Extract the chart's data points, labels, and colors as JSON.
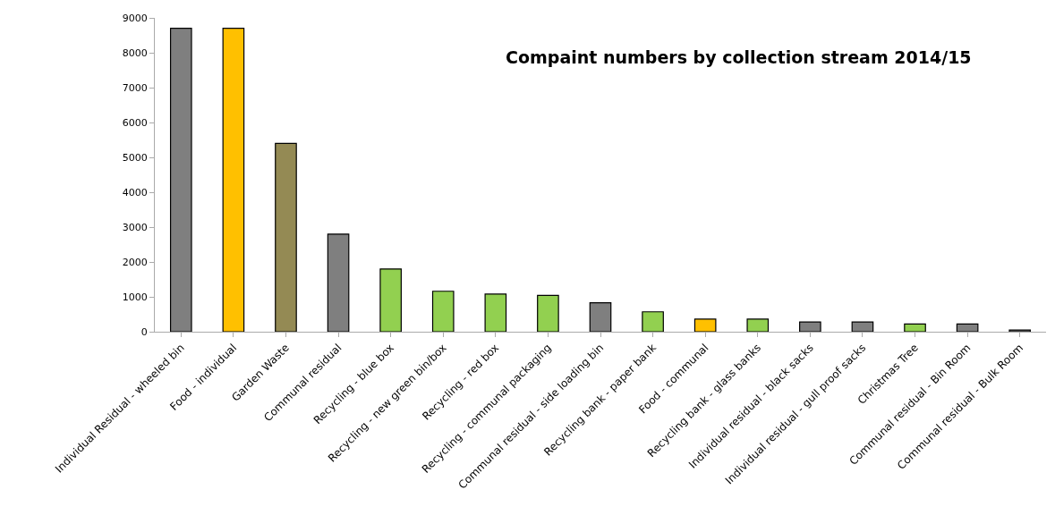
{
  "chart_data": {
    "type": "bar",
    "title": "Compaint numbers by collection stream 2014/15",
    "categories": [
      "Individual Residual - wheeled bin",
      "Food - individual",
      "Garden Waste",
      "Communal residual",
      "Recycling - blue box",
      "Recycling - new green bin/box",
      "Recycling - red box",
      "Recycling - communal packaging",
      "Communal residual - side loading bin",
      "Recycling bank - paper bank",
      "Food - communal",
      "Recycling bank - glass banks",
      "Individual residual - black sacks",
      "Individual residual - gull proof sacks",
      "Christmas Tree",
      "Communal residual - Bin Room",
      "Communal residual - Bulk Room"
    ],
    "values": [
      8700,
      8700,
      5400,
      2800,
      1800,
      1160,
      1080,
      1040,
      830,
      570,
      360,
      360,
      280,
      280,
      220,
      220,
      50
    ],
    "colors": [
      "#7f7f7f",
      "#ffc000",
      "#948a54",
      "#7f7f7f",
      "#92d050",
      "#92d050",
      "#92d050",
      "#92d050",
      "#7f7f7f",
      "#92d050",
      "#ffc000",
      "#92d050",
      "#7f7f7f",
      "#7f7f7f",
      "#92d050",
      "#7f7f7f",
      "#7f7f7f"
    ],
    "ylim": [
      0,
      9000
    ],
    "yticks": [
      0,
      1000,
      2000,
      3000,
      4000,
      5000,
      6000,
      7000,
      8000,
      9000
    ],
    "grid": false
  }
}
